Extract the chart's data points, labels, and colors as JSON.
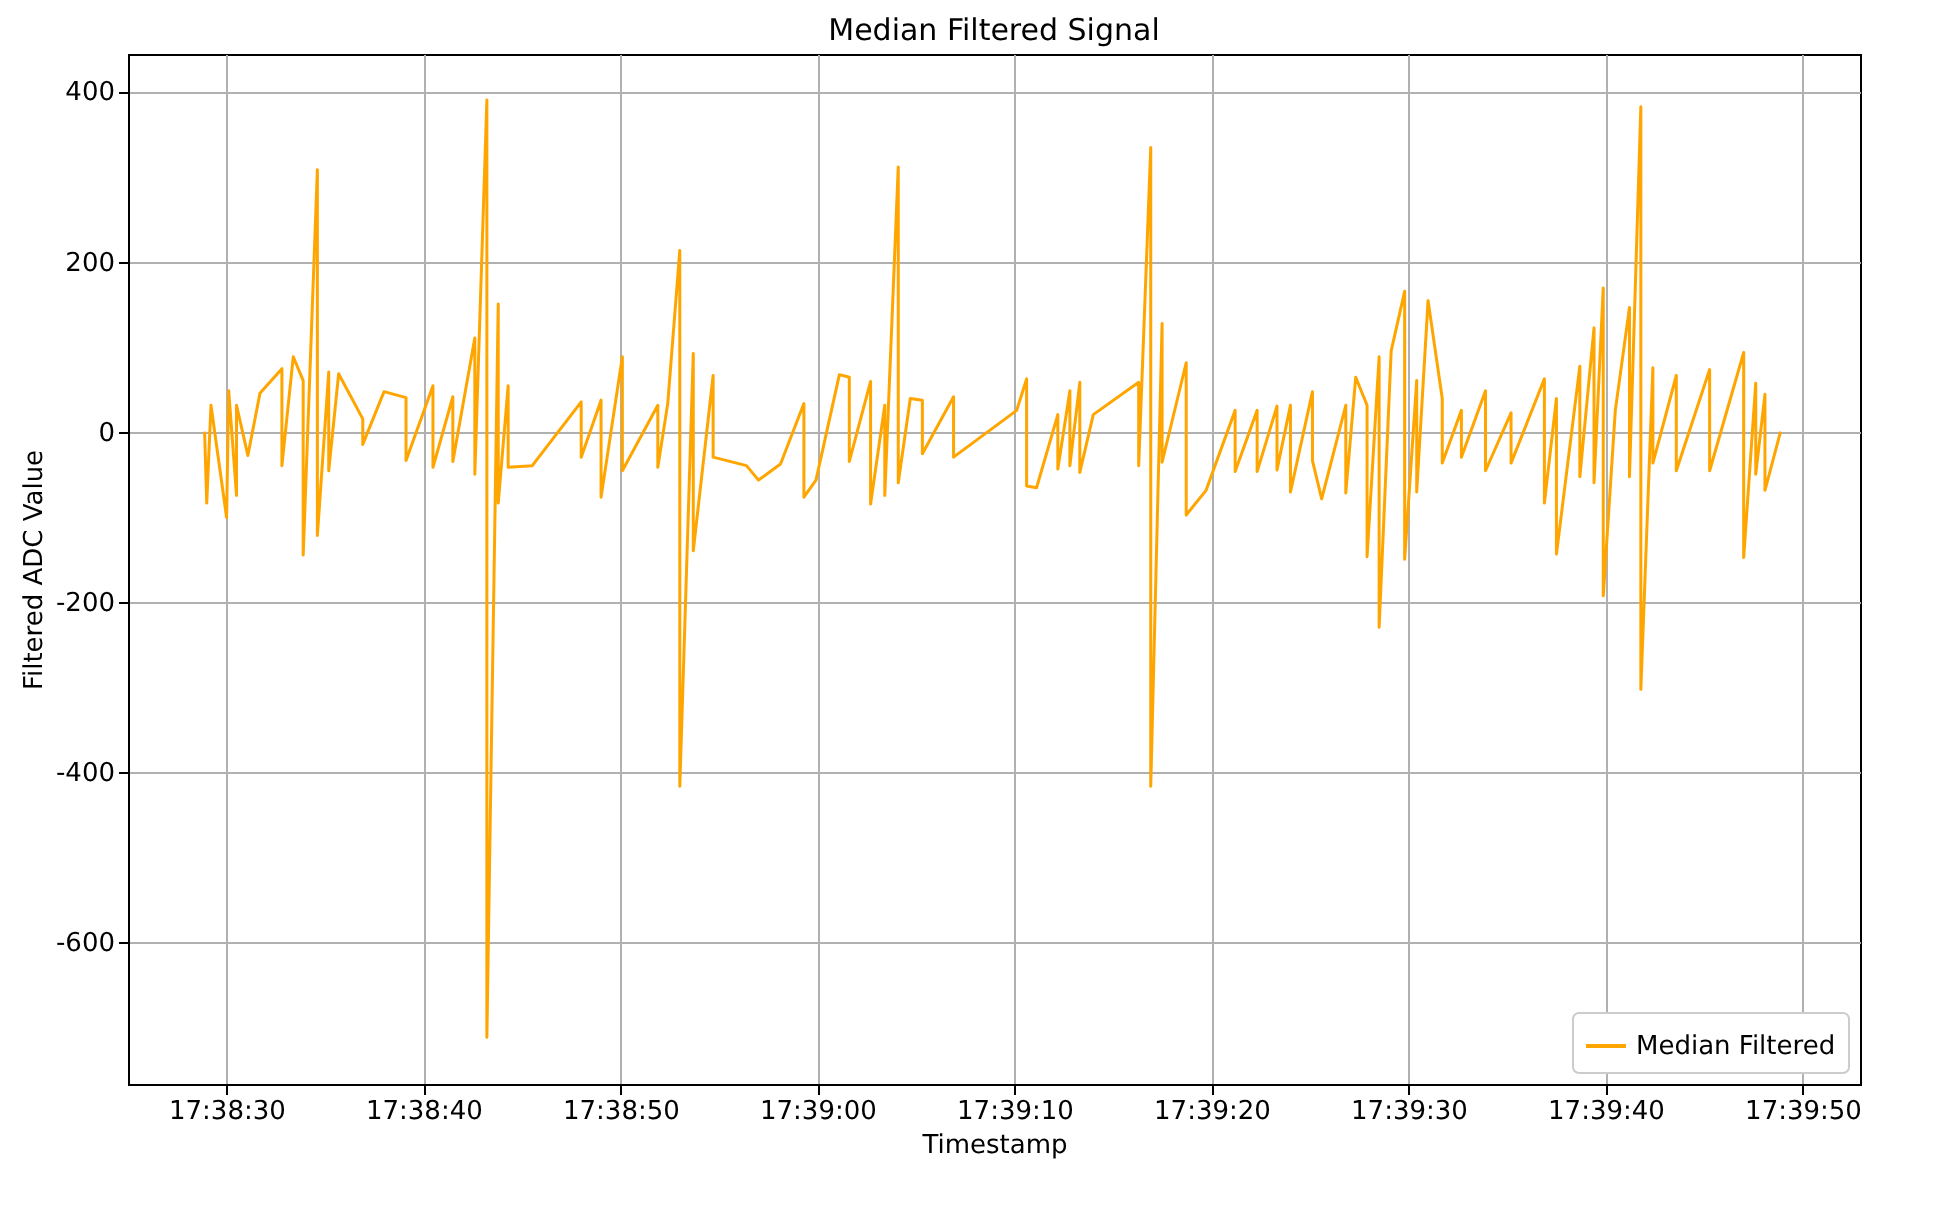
{
  "chart_data": {
    "type": "line",
    "title": "Median Filtered Signal",
    "xlabel": "Timestamp",
    "ylabel": "Filtered ADC Value",
    "xlim": [
      17.64028,
      17.6647
    ],
    "xticks": [
      {
        "value": 17.641667,
        "label": "17:38:30"
      },
      {
        "value": 17.644444,
        "label": "17:38:40"
      },
      {
        "value": 17.647222,
        "label": "17:38:50"
      },
      {
        "value": 17.65,
        "label": "17:39:00"
      },
      {
        "value": 17.652778,
        "label": "17:39:10"
      },
      {
        "value": 17.655556,
        "label": "17:39:20"
      },
      {
        "value": 17.658333,
        "label": "17:39:30"
      },
      {
        "value": 17.661111,
        "label": "17:39:40"
      },
      {
        "value": 17.663889,
        "label": "17:39:50"
      }
    ],
    "ylim": [
      -767,
      444
    ],
    "yticks": [
      -600,
      -400,
      -200,
      0,
      200,
      400
    ],
    "grid": true,
    "legend": "bottom right",
    "marker": "none",
    "line_style": "solid",
    "series": [
      {
        "name": "Median Filtered",
        "color": "#ffa500",
        "x": [
          17.64136,
          17.64139,
          17.64145,
          17.64167,
          17.6417,
          17.64181,
          17.64181,
          17.64197,
          17.64214,
          17.64245,
          17.64245,
          17.64261,
          17.64275,
          17.64275,
          17.64295,
          17.64295,
          17.64311,
          17.64311,
          17.64325,
          17.64359,
          17.64359,
          17.64389,
          17.6442,
          17.6442,
          17.64458,
          17.64458,
          17.64486,
          17.64486,
          17.64517,
          17.64517,
          17.64534,
          17.64534,
          17.6455,
          17.6455,
          17.64564,
          17.64564,
          17.64598,
          17.64667,
          17.64667,
          17.64695,
          17.64695,
          17.64725,
          17.64725,
          17.64775,
          17.64775,
          17.64789,
          17.64806,
          17.64806,
          17.64825,
          17.64825,
          17.64853,
          17.64853,
          17.649,
          17.64917,
          17.64948,
          17.64981,
          17.64981,
          17.64998,
          17.65031,
          17.65045,
          17.65045,
          17.65075,
          17.65075,
          17.65095,
          17.65095,
          17.65114,
          17.65114,
          17.65131,
          17.65148,
          17.65148,
          17.65192,
          17.65192,
          17.65281,
          17.65295,
          17.65295,
          17.65309,
          17.65339,
          17.65339,
          17.65356,
          17.65356,
          17.6537,
          17.6537,
          17.65389,
          17.65453,
          17.65453,
          17.6547,
          17.6547,
          17.65486,
          17.65486,
          17.6552,
          17.6552,
          17.65548,
          17.65589,
          17.65589,
          17.6562,
          17.6562,
          17.65648,
          17.65648,
          17.65667,
          17.65667,
          17.65698,
          17.65698,
          17.65711,
          17.65745,
          17.65745,
          17.65759,
          17.65775,
          17.65775,
          17.65792,
          17.65792,
          17.65809,
          17.65828,
          17.65828,
          17.65845,
          17.65845,
          17.65861,
          17.65881,
          17.65881,
          17.65908,
          17.65908,
          17.65942,
          17.65942,
          17.65978,
          17.65978,
          17.66025,
          17.66025,
          17.66042,
          17.66042,
          17.66075,
          17.66075,
          17.66095,
          17.66095,
          17.66108,
          17.66108,
          17.66125,
          17.66145,
          17.66145,
          17.66161,
          17.66161,
          17.66178,
          17.66178,
          17.66211,
          17.66211,
          17.66258,
          17.66258,
          17.66306,
          17.66306,
          17.66323,
          17.66323,
          17.66336,
          17.66336,
          17.66358
        ],
        "values": [
          0,
          -84,
          31,
          -101,
          48,
          -75,
          31,
          -28,
          45,
          74,
          -40,
          88,
          60,
          -145,
          308,
          -122,
          70,
          -46,
          68,
          15,
          -15,
          47,
          40,
          -34,
          54,
          -42,
          41,
          -35,
          110,
          -50,
          390,
          -712,
          150,
          -84,
          54,
          -42,
          -40,
          35,
          -30,
          37,
          -77,
          88,
          -46,
          31,
          -42,
          33,
          213,
          -417,
          92,
          -140,
          66,
          -30,
          -40,
          -57,
          -38,
          33,
          -77,
          -57,
          67,
          64,
          -35,
          59,
          -85,
          31,
          -75,
          311,
          -60,
          39,
          37,
          -26,
          41,
          -30,
          25,
          62,
          -64,
          -66,
          20,
          -44,
          48,
          -40,
          58,
          -48,
          20,
          58,
          -40,
          334,
          -417,
          127,
          -36,
          81,
          -98,
          -69,
          25,
          -47,
          25,
          -47,
          30,
          -45,
          31,
          -71,
          47,
          -34,
          -79,
          31,
          -72,
          64,
          31,
          -147,
          88,
          -230,
          95,
          165,
          -150,
          60,
          -71,
          154,
          39,
          -37,
          25,
          -30,
          48,
          -46,
          22,
          -37,
          62,
          -84,
          39,
          -144,
          77,
          -53,
          122,
          -60,
          169,
          -193,
          25,
          146,
          -53,
          382,
          -303,
          75,
          -37,
          66,
          -46,
          73,
          -46,
          93,
          -148,
          57,
          -50,
          44,
          -69,
          0
        ]
      }
    ]
  }
}
